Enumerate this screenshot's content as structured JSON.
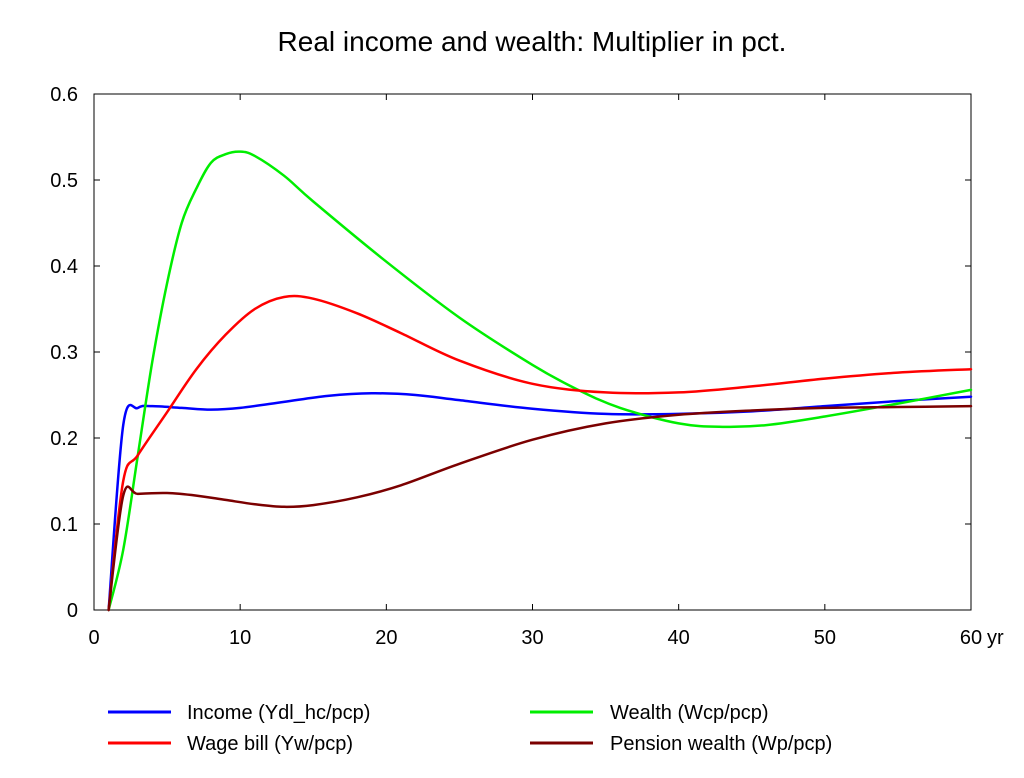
{
  "chart_data": {
    "type": "line",
    "title": "Real income and wealth: Multiplier in pct.",
    "xlabel": "",
    "ylabel": "",
    "x_unit": "yr",
    "xlim": [
      0,
      60
    ],
    "ylim": [
      0,
      0.6
    ],
    "x_ticks": [
      "0",
      "10",
      "20",
      "30",
      "40",
      "50",
      "60"
    ],
    "y_ticks": [
      "0",
      "0.1",
      "0.2",
      "0.3",
      "0.4",
      "0.5",
      "0.6"
    ],
    "grid": false,
    "legend_position": "bottom",
    "series": [
      {
        "name": "Income (Ydl_hc/pcp)",
        "color": "#0000ff",
        "x": [
          1,
          2,
          3,
          4,
          6,
          8,
          10,
          13,
          16,
          19,
          22,
          25,
          30,
          35,
          40,
          45,
          50,
          55,
          60
        ],
        "y": [
          0,
          0.215,
          0.235,
          0.237,
          0.235,
          0.233,
          0.235,
          0.242,
          0.249,
          0.252,
          0.25,
          0.244,
          0.234,
          0.228,
          0.228,
          0.231,
          0.237,
          0.243,
          0.248
        ]
      },
      {
        "name": "Wealth (Wcp/pcp)",
        "color": "#00ee00",
        "x": [
          1,
          2,
          3,
          4,
          5,
          6,
          7,
          8,
          9,
          10,
          11,
          13,
          15,
          20,
          25,
          30,
          33,
          36,
          40,
          43,
          46,
          50,
          55,
          60
        ],
        "y": [
          0,
          0.07,
          0.18,
          0.29,
          0.38,
          0.45,
          0.49,
          0.52,
          0.53,
          0.533,
          0.528,
          0.505,
          0.475,
          0.405,
          0.34,
          0.285,
          0.257,
          0.235,
          0.217,
          0.213,
          0.215,
          0.225,
          0.24,
          0.256
        ]
      },
      {
        "name": "Wage bill (Yw/pcp)",
        "color": "#ff0000",
        "x": [
          1,
          2,
          3,
          5,
          7,
          9,
          11,
          13,
          15,
          18,
          21,
          25,
          30,
          35,
          40,
          45,
          50,
          55,
          60
        ],
        "y": [
          0,
          0.15,
          0.18,
          0.23,
          0.28,
          0.32,
          0.35,
          0.364,
          0.362,
          0.345,
          0.322,
          0.29,
          0.263,
          0.253,
          0.253,
          0.26,
          0.269,
          0.276,
          0.28
        ]
      },
      {
        "name": "Pension wealth (Wp/pcp)",
        "color": "#7b0000",
        "x": [
          1,
          2,
          3,
          5,
          7,
          9,
          11,
          13,
          15,
          18,
          21,
          25,
          30,
          35,
          40,
          45,
          50,
          55,
          60
        ],
        "y": [
          0,
          0.133,
          0.135,
          0.136,
          0.133,
          0.128,
          0.123,
          0.12,
          0.122,
          0.131,
          0.145,
          0.17,
          0.198,
          0.217,
          0.227,
          0.232,
          0.235,
          0.236,
          0.237
        ]
      }
    ]
  }
}
